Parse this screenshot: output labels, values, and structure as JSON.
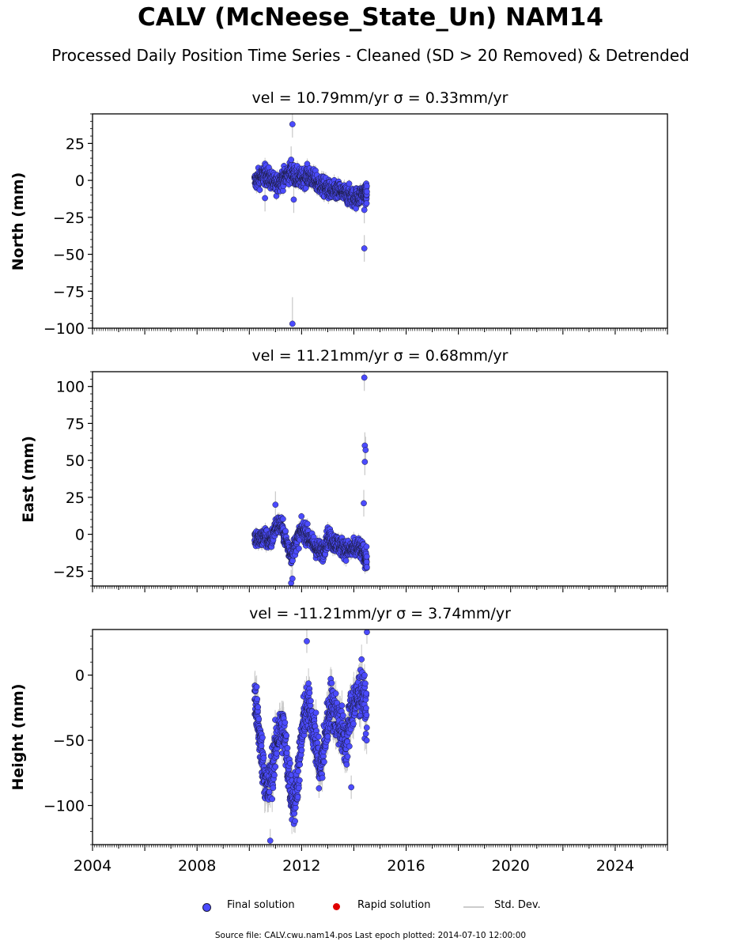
{
  "title": "CALV (McNeese_State_Un) NAM14",
  "subtitle": "Processed Daily Position Time Series - Cleaned (SD > 20 Removed) & Detrended",
  "legend": {
    "final_label": "Final solution",
    "rapid_label": "Rapid solution",
    "std_label": "Std. Dev."
  },
  "footer": "Source file: CALV.cwu.nam14.pos  Last epoch plotted: 2014-07-10 12:00:00",
  "colors": {
    "final": "#4b4bff",
    "final_edge": "#1a1a3a",
    "rapid": "#e00000",
    "std": "#c8c8c8"
  },
  "chart_data": [
    {
      "type": "scatter",
      "title": "vel = 10.79mm/yr   σ = 0.33mm/yr",
      "ylabel": "North (mm)",
      "xlim": [
        2004.0,
        2026.0
      ],
      "ylim": [
        -100,
        45
      ],
      "yticks": [
        -100,
        -75,
        -50,
        -25,
        0,
        25
      ],
      "series": [
        {
          "name": "Final solution",
          "x": [
            2010.2,
            2010.4,
            2010.6,
            2010.8,
            2011.0,
            2011.2,
            2011.4,
            2011.6,
            2011.8,
            2012.0,
            2012.2,
            2012.4,
            2012.6,
            2012.8,
            2013.0,
            2013.2,
            2013.4,
            2013.6,
            2013.8,
            2014.0,
            2014.2,
            2014.4,
            2014.5
          ],
          "y": [
            -1,
            2,
            4,
            1,
            -3,
            0,
            3,
            6,
            2,
            1,
            3,
            2,
            -2,
            -4,
            -6,
            -8,
            -7,
            -9,
            -10,
            -12,
            -11,
            -8,
            -10
          ]
        }
      ],
      "outliers": {
        "x": [
          2010.6,
          2011.65,
          2011.6,
          2011.7,
          2014.4,
          2014.4
        ],
        "y": [
          -12,
          38,
          14,
          -13,
          -46,
          -20
        ]
      },
      "extreme": {
        "x": [
          2011.65
        ],
        "y": [
          -97
        ]
      }
    },
    {
      "type": "scatter",
      "title": "vel = 11.21mm/yr   σ = 0.68mm/yr",
      "ylabel": "East (mm)",
      "xlim": [
        2004.0,
        2026.0
      ],
      "ylim": [
        -35,
        110
      ],
      "yticks": [
        -25,
        0,
        25,
        50,
        75,
        100
      ],
      "series": [
        {
          "name": "Final solution",
          "x": [
            2010.2,
            2010.4,
            2010.6,
            2010.8,
            2011.0,
            2011.2,
            2011.4,
            2011.6,
            2011.8,
            2012.0,
            2012.2,
            2012.4,
            2012.6,
            2012.8,
            2013.0,
            2013.2,
            2013.4,
            2013.6,
            2013.8,
            2014.0,
            2014.2,
            2014.4,
            2014.5
          ],
          "y": [
            -2,
            -4,
            -1,
            -6,
            5,
            7,
            -4,
            -14,
            -5,
            3,
            0,
            -6,
            -10,
            -12,
            -2,
            -5,
            -7,
            -9,
            -11,
            -10,
            -9,
            -14,
            -18
          ]
        }
      ],
      "outliers": {
        "x": [
          2011.0,
          2011.6,
          2011.65,
          2014.4,
          2014.42,
          2014.45,
          2014.42,
          2014.38
        ],
        "y": [
          20,
          -33,
          -30,
          106,
          60,
          57,
          49,
          21
        ]
      },
      "extreme": {
        "x": [],
        "y": []
      }
    },
    {
      "type": "scatter",
      "title": "vel = -11.21mm/yr   σ = 3.74mm/yr",
      "ylabel": "Height (mm)",
      "xlim": [
        2004.0,
        2026.0
      ],
      "ylim": [
        -130,
        35
      ],
      "yticks": [
        -100,
        -50,
        0
      ],
      "xticks": [
        2004,
        2008,
        2012,
        2016,
        2020,
        2024
      ],
      "series": [
        {
          "name": "Final solution",
          "x": [
            2010.2,
            2010.35,
            2010.5,
            2010.7,
            2010.9,
            2011.1,
            2011.3,
            2011.5,
            2011.7,
            2011.9,
            2012.1,
            2012.3,
            2012.5,
            2012.7,
            2012.9,
            2013.1,
            2013.3,
            2013.5,
            2013.7,
            2013.9,
            2014.1,
            2014.3,
            2014.5
          ],
          "y": [
            -15,
            -40,
            -65,
            -90,
            -70,
            -45,
            -40,
            -75,
            -100,
            -70,
            -30,
            -25,
            -45,
            -75,
            -50,
            -20,
            -30,
            -40,
            -55,
            -25,
            -20,
            -10,
            -30
          ]
        }
      ],
      "outliers": {
        "x": [
          2010.8,
          2011.75,
          2012.2,
          2014.5,
          2013.9
        ],
        "y": [
          -127,
          -112,
          26,
          33,
          -86
        ]
      },
      "extreme": {
        "x": [],
        "y": []
      }
    }
  ]
}
